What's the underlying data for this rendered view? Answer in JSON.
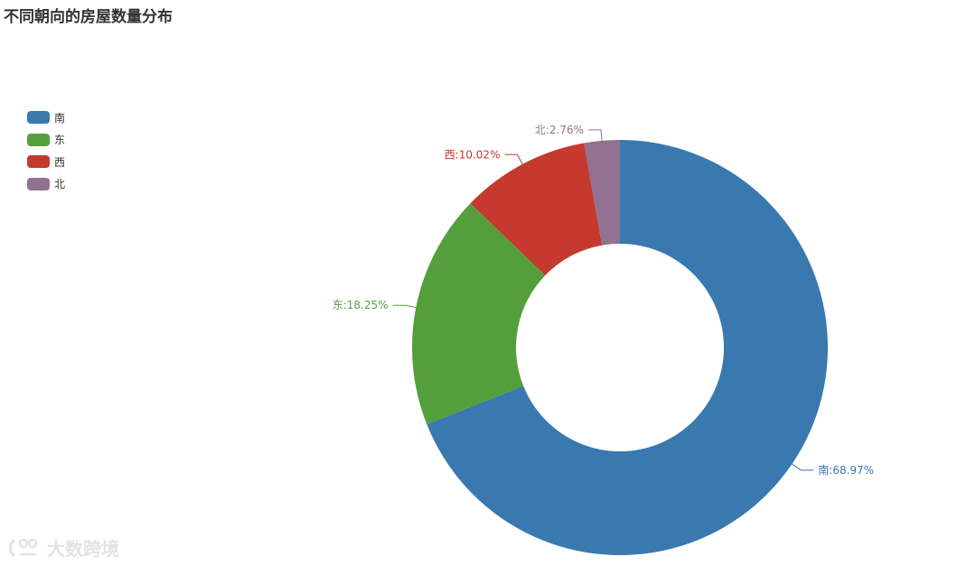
{
  "chart_data": {
    "type": "pie",
    "title": "不同朝向的房屋数量分布",
    "categories": [
      "南",
      "东",
      "西",
      "北"
    ],
    "values": [
      68.97,
      18.25,
      10.02,
      2.76
    ],
    "labels": [
      "南:68.97%",
      "东:18.25%",
      "西:10.02%",
      "北:2.76%"
    ],
    "colors": [
      "#3a78b0",
      "#559e3c",
      "#c5392f",
      "#937190"
    ],
    "legend_position": "top-left",
    "donut": true
  },
  "watermark": {
    "text": "大数跨境"
  }
}
